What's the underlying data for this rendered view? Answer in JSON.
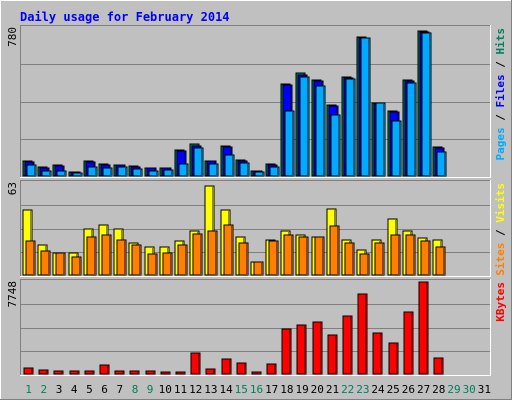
{
  "chart_data": {
    "type": "bar",
    "title": "Daily usage for February 2014",
    "categories": [
      "1",
      "2",
      "3",
      "4",
      "5",
      "6",
      "7",
      "8",
      "9",
      "10",
      "11",
      "12",
      "13",
      "14",
      "15",
      "16",
      "17",
      "18",
      "19",
      "20",
      "21",
      "22",
      "23",
      "24",
      "25",
      "26",
      "27",
      "28",
      "29",
      "30",
      "31"
    ],
    "weekend_days": [
      "1",
      "2",
      "8",
      "9",
      "15",
      "16",
      "22",
      "23",
      "29",
      "30"
    ],
    "panels": [
      {
        "id": "top",
        "max_label": "780",
        "ylim": [
          0,
          780
        ],
        "right_label": [
          {
            "text": "Pages",
            "color": "#00AAFF"
          },
          {
            "text": " / ",
            "color": "#000000"
          },
          {
            "text": "Files",
            "color": "#0000FF"
          },
          {
            "text": " / ",
            "color": "#000000"
          },
          {
            "text": "Hits",
            "color": "#00805C"
          }
        ],
        "series": [
          {
            "name": "Hits",
            "color": "#00805C",
            "values": [
              78,
              45,
              58,
              22,
              80,
              62,
              60,
              52,
              44,
              44,
              135,
              165,
              80,
              155,
              85,
              28,
              62,
              480,
              540,
              500,
              370,
              520,
              730,
              380,
              340,
              500,
              760,
              150,
              0,
              0,
              0
            ]
          },
          {
            "name": "Files",
            "color": "#0000FF",
            "values": [
              72,
              42,
              52,
              20,
              75,
              58,
              55,
              48,
              40,
              40,
              130,
              158,
              76,
              150,
              80,
              25,
              58,
              475,
              530,
              495,
              365,
              515,
              725,
              375,
              335,
              495,
              755,
              145,
              0,
              0,
              0
            ]
          },
          {
            "name": "Pages",
            "color": "#00AAFF",
            "values": [
              58,
              25,
              28,
              18,
              48,
              42,
              48,
              38,
              28,
              30,
              62,
              145,
              62,
              110,
              70,
              20,
              48,
              340,
              520,
              470,
              320,
              510,
              720,
              380,
              290,
              485,
              750,
              125,
              0,
              0,
              0
            ]
          }
        ]
      },
      {
        "id": "middle",
        "max_label": "63",
        "ylim": [
          0,
          63
        ],
        "right_label": [
          {
            "text": "Sites",
            "color": "#FF8000"
          },
          {
            "text": " / ",
            "color": "#000000"
          },
          {
            "text": "Visits",
            "color": "#FFFF00"
          }
        ],
        "series": [
          {
            "name": "Visits",
            "color": "#FFFF00",
            "values": [
              44,
              20,
              15,
              15,
              31,
              34,
              31,
              22,
              19,
              19,
              23,
              30,
              60,
              44,
              26,
              9,
              24,
              30,
              27,
              26,
              45,
              24,
              17,
              24,
              38,
              30,
              25,
              24,
              0,
              0,
              0
            ]
          },
          {
            "name": "Sites",
            "color": "#FF8000",
            "values": [
              23,
              16,
              15,
              12,
              26,
              27,
              24,
              20,
              14,
              15,
              20,
              28,
              30,
              34,
              22,
              9,
              23,
              27,
              26,
              26,
              33,
              22,
              14,
              22,
              27,
              27,
              23,
              19,
              0,
              0,
              0
            ]
          }
        ]
      },
      {
        "id": "bottom",
        "max_label": "7748",
        "ylim": [
          0,
          7748
        ],
        "right_label": [
          {
            "text": "KBytes",
            "color": "#FF0000"
          }
        ],
        "series": [
          {
            "name": "KBytes",
            "color": "#FF0000",
            "values": [
              500,
              350,
              250,
              250,
              250,
              750,
              250,
              250,
              250,
              150,
              150,
              1750,
              450,
              1250,
              900,
              150,
              800,
              3750,
              4050,
              4350,
              3250,
              4850,
              6650,
              3450,
              2550,
              5150,
              7650,
              1350,
              0,
              0,
              0
            ]
          }
        ]
      }
    ]
  }
}
